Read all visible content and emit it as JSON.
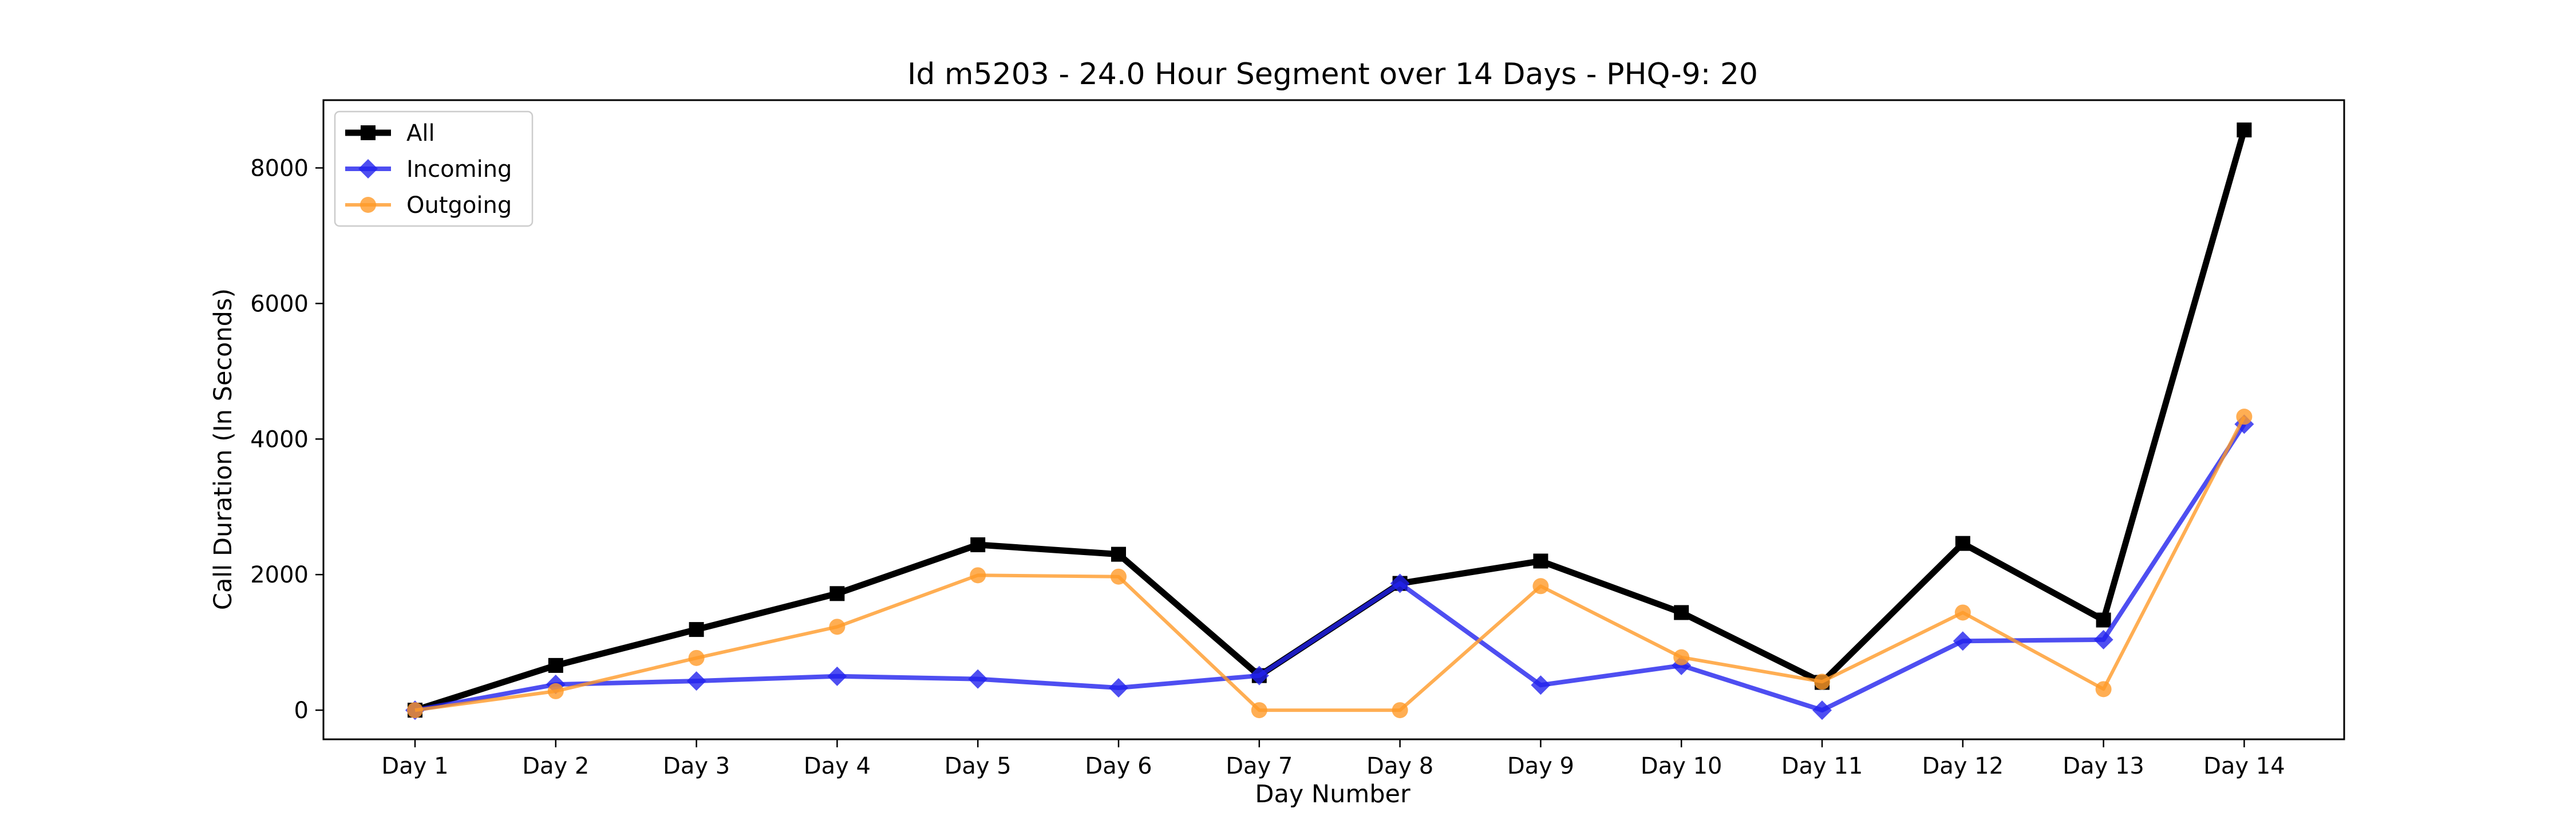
{
  "chart_data": {
    "type": "line",
    "title": "Id m5203 - 24.0 Hour Segment over 14 Days - PHQ-9: 20",
    "xlabel": "Day Number",
    "ylabel": "Call Duration (In Seconds)",
    "categories": [
      "Day 1",
      "Day 2",
      "Day 3",
      "Day 4",
      "Day 5",
      "Day 6",
      "Day 7",
      "Day 8",
      "Day 9",
      "Day 10",
      "Day 11",
      "Day 12",
      "Day 13",
      "Day 14"
    ],
    "ylim": [
      -430,
      9000
    ],
    "yticks": [
      0,
      2000,
      4000,
      6000,
      8000
    ],
    "grid": false,
    "legend_position": "top-left",
    "series": [
      {
        "name": "All",
        "color": "#000000",
        "marker": "square",
        "values": [
          0,
          660,
          1190,
          1720,
          2440,
          2300,
          510,
          1870,
          2200,
          1440,
          410,
          2460,
          1330,
          8560
        ]
      },
      {
        "name": "Incoming",
        "color": "#2222ee",
        "marker": "diamond",
        "values": [
          0,
          380,
          430,
          500,
          460,
          330,
          510,
          1870,
          370,
          660,
          0,
          1020,
          1040,
          4220
        ]
      },
      {
        "name": "Outgoing",
        "color": "#ff9a28",
        "marker": "circle",
        "values": [
          0,
          280,
          770,
          1230,
          1990,
          1970,
          0,
          0,
          1830,
          780,
          420,
          1440,
          310,
          4330
        ]
      }
    ]
  }
}
